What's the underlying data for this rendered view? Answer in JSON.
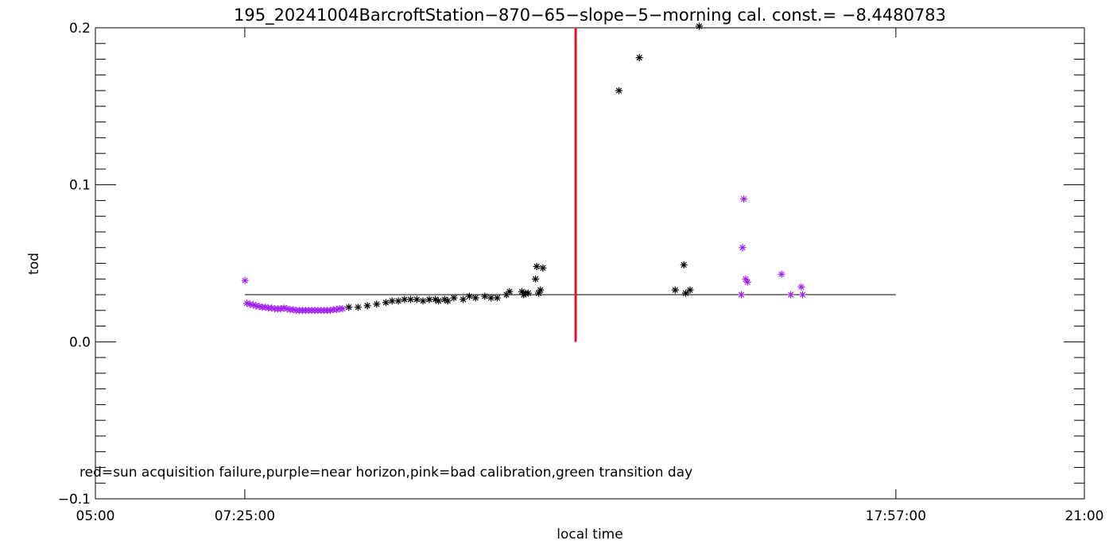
{
  "chart_data": {
    "type": "scatter",
    "title": "195_20241004BarcroftStation−870−65−slope−5−morning cal. const.= −8.4480783",
    "xlabel": "local time",
    "ylabel": "tod",
    "x_unit": "hours",
    "xlim": [
      5.0,
      21.0
    ],
    "ylim": [
      -0.1,
      0.2
    ],
    "x_ticks": [
      {
        "value": 5.0,
        "label": "05:00"
      },
      {
        "value": 7.4167,
        "label": "07:25:00"
      },
      {
        "value": 17.95,
        "label": "17:57:00"
      },
      {
        "value": 21.0,
        "label": "21:00"
      }
    ],
    "y_ticks": [
      {
        "value": -0.1,
        "label": "−0.1"
      },
      {
        "value": 0.0,
        "label": "0.0"
      },
      {
        "value": 0.1,
        "label": "0.1"
      },
      {
        "value": 0.2,
        "label": "0.2"
      }
    ],
    "legend_note": "red=sun acquisition failure,purple=near horizon,pink=bad calibration,green transition day",
    "colors": {
      "normal": "#000000",
      "near_horizon": "#a020f0",
      "marker_line": "#e8102a",
      "fit_line": "#000000"
    },
    "reference_line": {
      "y": 0.03,
      "x_start": 7.4167,
      "x_end": 17.95
    },
    "vertical_marker": {
      "x": 12.77,
      "y_start": 0.0,
      "y_end": 0.2
    },
    "series": [
      {
        "category": "near_horizon",
        "points": [
          [
            7.42,
            0.039
          ],
          [
            7.45,
            0.0245
          ],
          [
            7.5,
            0.024
          ],
          [
            7.55,
            0.0235
          ],
          [
            7.6,
            0.023
          ],
          [
            7.65,
            0.0225
          ],
          [
            7.7,
            0.022
          ],
          [
            7.75,
            0.022
          ],
          [
            7.8,
            0.0215
          ],
          [
            7.85,
            0.0215
          ],
          [
            7.9,
            0.021
          ],
          [
            7.95,
            0.021
          ],
          [
            8.0,
            0.021
          ],
          [
            8.05,
            0.0215
          ],
          [
            8.1,
            0.021
          ],
          [
            8.15,
            0.0205
          ],
          [
            8.2,
            0.0205
          ],
          [
            8.25,
            0.02
          ],
          [
            8.3,
            0.02
          ],
          [
            8.35,
            0.02
          ],
          [
            8.4,
            0.02
          ],
          [
            8.45,
            0.02
          ],
          [
            8.5,
            0.02
          ],
          [
            8.55,
            0.02
          ],
          [
            8.6,
            0.02
          ],
          [
            8.65,
            0.02
          ],
          [
            8.7,
            0.02
          ],
          [
            8.75,
            0.02
          ],
          [
            8.8,
            0.02
          ],
          [
            8.85,
            0.0205
          ],
          [
            8.9,
            0.0205
          ],
          [
            8.95,
            0.021
          ],
          [
            9.0,
            0.021
          ],
          [
            15.45,
            0.03
          ],
          [
            15.47,
            0.06
          ],
          [
            15.49,
            0.091
          ],
          [
            15.52,
            0.04
          ],
          [
            15.55,
            0.038
          ],
          [
            16.1,
            0.043
          ],
          [
            16.25,
            0.03
          ],
          [
            16.42,
            0.035
          ],
          [
            16.44,
            0.03
          ]
        ]
      },
      {
        "category": "normal",
        "points": [
          [
            9.1,
            0.022
          ],
          [
            9.25,
            0.022
          ],
          [
            9.4,
            0.023
          ],
          [
            9.55,
            0.024
          ],
          [
            9.7,
            0.025
          ],
          [
            9.8,
            0.026
          ],
          [
            9.9,
            0.026
          ],
          [
            10.0,
            0.027
          ],
          [
            10.1,
            0.027
          ],
          [
            10.2,
            0.027
          ],
          [
            10.3,
            0.026
          ],
          [
            10.4,
            0.027
          ],
          [
            10.5,
            0.027
          ],
          [
            10.55,
            0.026
          ],
          [
            10.65,
            0.027
          ],
          [
            10.7,
            0.026
          ],
          [
            10.8,
            0.028
          ],
          [
            10.95,
            0.027
          ],
          [
            11.05,
            0.029
          ],
          [
            11.15,
            0.028
          ],
          [
            11.3,
            0.029
          ],
          [
            11.4,
            0.028
          ],
          [
            11.5,
            0.028
          ],
          [
            11.65,
            0.03
          ],
          [
            11.7,
            0.032
          ],
          [
            11.9,
            0.032
          ],
          [
            11.93,
            0.03
          ],
          [
            11.96,
            0.031
          ],
          [
            12.0,
            0.031
          ],
          [
            12.12,
            0.04
          ],
          [
            12.14,
            0.048
          ],
          [
            12.17,
            0.031
          ],
          [
            12.2,
            0.033
          ],
          [
            12.24,
            0.047
          ],
          [
            13.47,
            0.16
          ],
          [
            13.8,
            0.181
          ],
          [
            14.38,
            0.033
          ],
          [
            14.52,
            0.049
          ],
          [
            14.55,
            0.031
          ],
          [
            14.62,
            0.033
          ],
          [
            14.77,
            0.201
          ]
        ]
      }
    ]
  }
}
